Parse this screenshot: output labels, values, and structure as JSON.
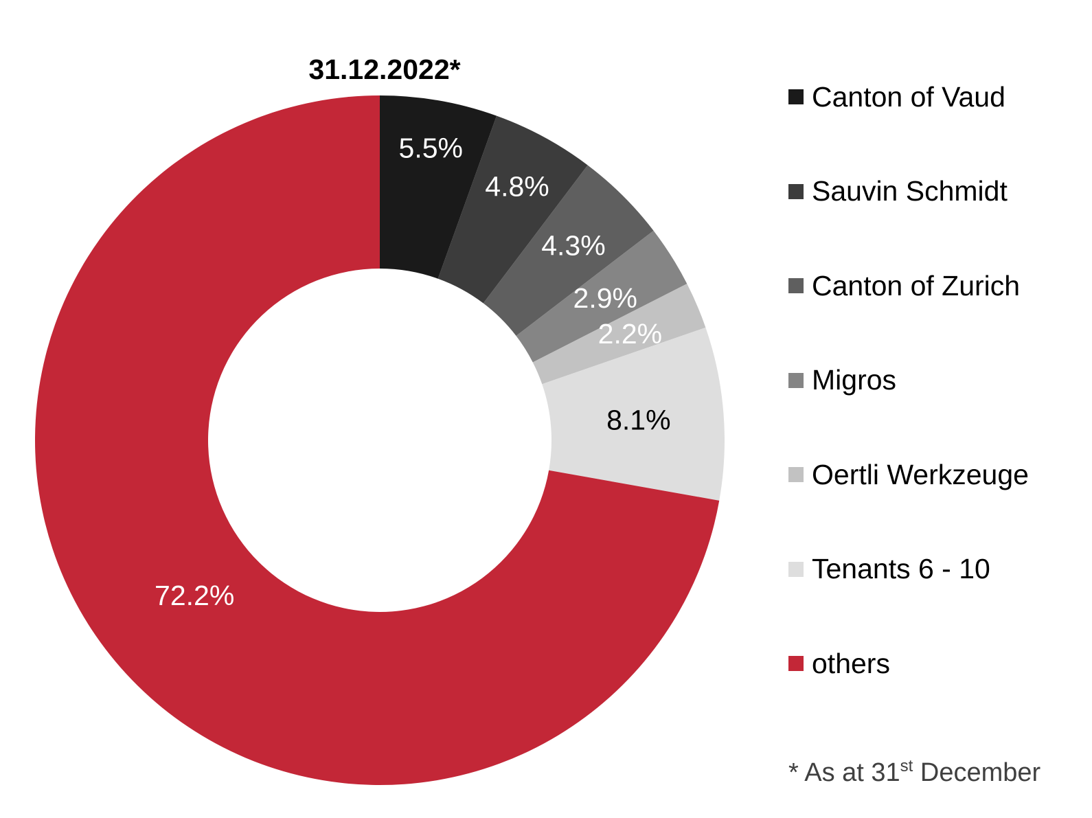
{
  "chart_data": {
    "type": "pie",
    "variant": "donut",
    "title": "31.12.2022*",
    "slices": [
      {
        "name": "Canton of Vaud",
        "value": 5.5,
        "label": "5.5%",
        "color": "#1a1a1a",
        "label_color": "#ffffff"
      },
      {
        "name": "Sauvin Schmidt",
        "value": 4.8,
        "label": "4.8%",
        "color": "#3c3c3c",
        "label_color": "#ffffff"
      },
      {
        "name": "Canton of Zurich",
        "value": 4.3,
        "label": "4.3%",
        "color": "#5f5f5f",
        "label_color": "#ffffff"
      },
      {
        "name": "Migros",
        "value": 2.9,
        "label": "2.9%",
        "color": "#858585",
        "label_color": "#ffffff"
      },
      {
        "name": "Oertli Werkzeuge",
        "value": 2.2,
        "label": "2.2%",
        "color": "#c2c2c2",
        "label_color": "#ffffff"
      },
      {
        "name": "Tenants 6 - 10",
        "value": 8.1,
        "label": "8.1%",
        "color": "#dedede",
        "label_color": "#000000"
      },
      {
        "name": "others",
        "value": 72.2,
        "label": "72.2%",
        "color": "#c32737",
        "label_color": "#ffffff"
      }
    ],
    "legend_position": "right",
    "start_angle": "12 o'clock, clockwise"
  },
  "footnote": {
    "prefix": "* As at 31",
    "sup": "st",
    "suffix": " December"
  }
}
